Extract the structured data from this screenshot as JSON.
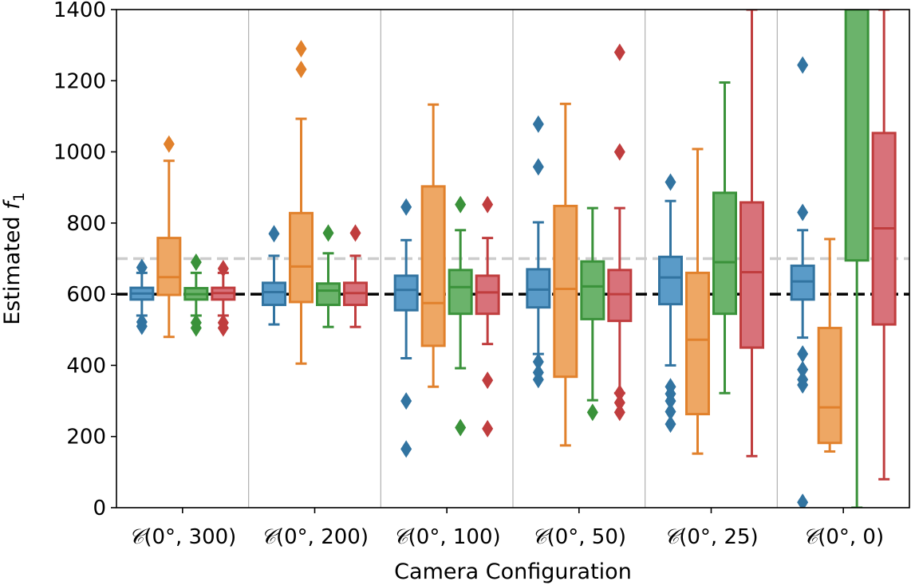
{
  "chart_data": {
    "type": "box",
    "xlabel": "Camera Configuration",
    "ylabel_prefix": "Estimated ",
    "ylabel_var": "f",
    "ylabel_sub": "1",
    "ylim": [
      0,
      1400
    ],
    "yticks": [
      0,
      200,
      400,
      600,
      800,
      1000,
      1200,
      1400
    ],
    "grid": false,
    "category_separators": true,
    "reference_lines": [
      {
        "y": 700,
        "color": "#cccccc",
        "style": "dashed"
      },
      {
        "y": 600,
        "color": "#000000",
        "style": "dashed"
      }
    ],
    "categories": [
      {
        "cal": "𝒞",
        "label": "(0°, 300)"
      },
      {
        "cal": "𝒞",
        "label": "(0°, 200)"
      },
      {
        "cal": "𝒞",
        "label": "(0°, 100)"
      },
      {
        "cal": "𝒞",
        "label": "(0°, 50)"
      },
      {
        "cal": "𝒞",
        "label": "(0°, 25)"
      },
      {
        "cal": "𝒞",
        "label": "(0°, 0)"
      }
    ],
    "series": [
      {
        "color": "#3274a1",
        "fill": "#5a9bc8",
        "boxes": [
          {
            "wlo": 540,
            "q1": 585,
            "med": 602,
            "q3": 618,
            "whi": 660,
            "outliers": [
              510,
              522,
              675
            ]
          },
          {
            "wlo": 515,
            "q1": 570,
            "med": 606,
            "q3": 632,
            "whi": 708,
            "outliers": [
              770
            ]
          },
          {
            "wlo": 420,
            "q1": 555,
            "med": 612,
            "q3": 652,
            "whi": 752,
            "outliers": [
              845,
              300,
              165
            ]
          },
          {
            "wlo": 432,
            "q1": 563,
            "med": 613,
            "q3": 670,
            "whi": 802,
            "outliers": [
              1078,
              958,
              410,
              380,
              360
            ]
          },
          {
            "wlo": 400,
            "q1": 572,
            "med": 647,
            "q3": 705,
            "whi": 862,
            "outliers": [
              915,
              340,
              320,
              300,
              270,
              235
            ]
          },
          {
            "wlo": 478,
            "q1": 585,
            "med": 636,
            "q3": 680,
            "whi": 780,
            "outliers": [
              1244,
              830,
              432,
              388,
              360,
              345,
              15
            ]
          }
        ]
      },
      {
        "color": "#e1812c",
        "fill": "#eea764",
        "boxes": [
          {
            "wlo": 480,
            "q1": 598,
            "med": 648,
            "q3": 758,
            "whi": 975,
            "outliers": [
              1022
            ]
          },
          {
            "wlo": 405,
            "q1": 578,
            "med": 678,
            "q3": 828,
            "whi": 1093,
            "outliers": [
              1290,
              1232
            ]
          },
          {
            "wlo": 340,
            "q1": 455,
            "med": 575,
            "q3": 903,
            "whi": 1133,
            "outliers": []
          },
          {
            "wlo": 175,
            "q1": 368,
            "med": 615,
            "q3": 848,
            "whi": 1135,
            "outliers": []
          },
          {
            "wlo": 152,
            "q1": 263,
            "med": 472,
            "q3": 660,
            "whi": 1008,
            "outliers": []
          },
          {
            "wlo": 158,
            "q1": 182,
            "med": 282,
            "q3": 505,
            "whi": 755,
            "outliers": []
          }
        ]
      },
      {
        "color": "#3a923a",
        "fill": "#6bb36b",
        "boxes": [
          {
            "wlo": 540,
            "q1": 585,
            "med": 600,
            "q3": 617,
            "whi": 660,
            "outliers": [
              505,
              520,
              690
            ]
          },
          {
            "wlo": 508,
            "q1": 570,
            "med": 610,
            "q3": 630,
            "whi": 715,
            "outliers": [
              772
            ]
          },
          {
            "wlo": 392,
            "q1": 545,
            "med": 620,
            "q3": 668,
            "whi": 780,
            "outliers": [
              852,
              225
            ]
          },
          {
            "wlo": 302,
            "q1": 530,
            "med": 622,
            "q3": 692,
            "whi": 842,
            "outliers": [
              268
            ]
          },
          {
            "wlo": 322,
            "q1": 545,
            "med": 690,
            "q3": 885,
            "whi": 1195,
            "outliers": []
          },
          {
            "wlo": 0,
            "q1": 695,
            "med": 1400,
            "q3": 1400,
            "whi": 1400,
            "outliers": []
          }
        ]
      },
      {
        "color": "#c03d3e",
        "fill": "#d8727a",
        "boxes": [
          {
            "wlo": 540,
            "q1": 585,
            "med": 603,
            "q3": 618,
            "whi": 660,
            "outliers": [
              505,
              520,
              672
            ]
          },
          {
            "wlo": 508,
            "q1": 570,
            "med": 603,
            "q3": 632,
            "whi": 708,
            "outliers": [
              772
            ]
          },
          {
            "wlo": 460,
            "q1": 545,
            "med": 605,
            "q3": 652,
            "whi": 758,
            "outliers": [
              852,
              358,
              222
            ]
          },
          {
            "wlo": 322,
            "q1": 525,
            "med": 600,
            "q3": 668,
            "whi": 842,
            "outliers": [
              1280,
              1000,
              322,
              295,
              268
            ]
          },
          {
            "wlo": 145,
            "q1": 450,
            "med": 662,
            "q3": 858,
            "whi": 1400,
            "outliers": []
          },
          {
            "wlo": 80,
            "q1": 515,
            "med": 785,
            "q3": 1053,
            "whi": 1400,
            "outliers": []
          }
        ]
      }
    ]
  }
}
